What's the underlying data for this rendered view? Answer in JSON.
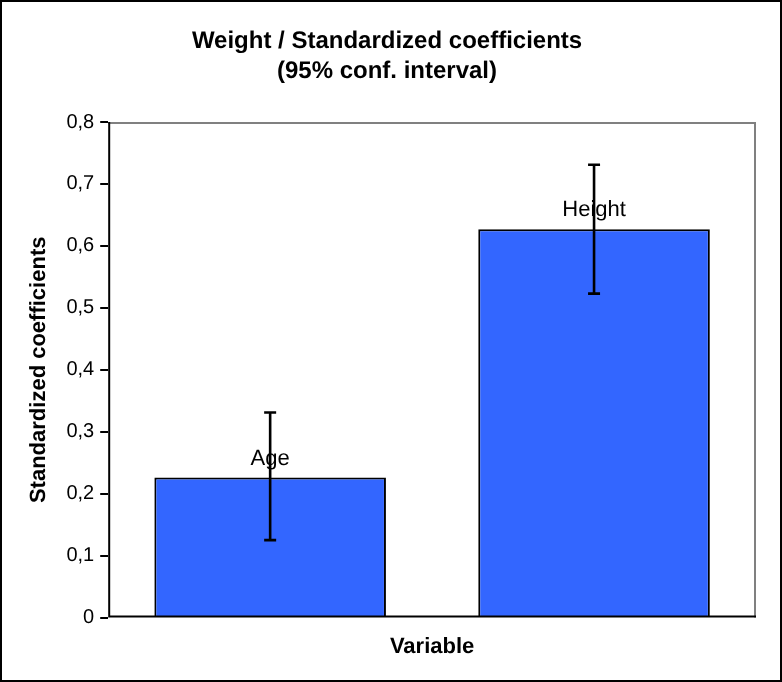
{
  "chart_data": {
    "type": "bar",
    "title": "Weight / Standardized coefficients\n(95% conf. interval)",
    "xlabel": "Variable",
    "ylabel": "Standardized coefficients",
    "categories": [
      "Age",
      "Height"
    ],
    "values": [
      0.226,
      0.627
    ],
    "errors": [
      [
        0.125,
        0.331
      ],
      [
        0.523,
        0.731
      ]
    ],
    "color": "#3366ff",
    "ylim": [
      0,
      0.8
    ],
    "yticks": [
      0,
      {
        "value": 0.1,
        "label": "0,1"
      },
      {
        "value": 0.2,
        "label": "0,2"
      },
      {
        "value": 0.3,
        "label": "0,3"
      },
      {
        "value": 0.4,
        "label": "0,4"
      },
      {
        "value": 0.5,
        "label": "0,5"
      },
      {
        "value": 0.6,
        "label": "0,6"
      },
      {
        "value": 0.7,
        "label": "0,7"
      },
      {
        "value": 0.8,
        "label": "0,8"
      }
    ],
    "tick_labels": "y",
    "grid": false,
    "legend": false
  }
}
